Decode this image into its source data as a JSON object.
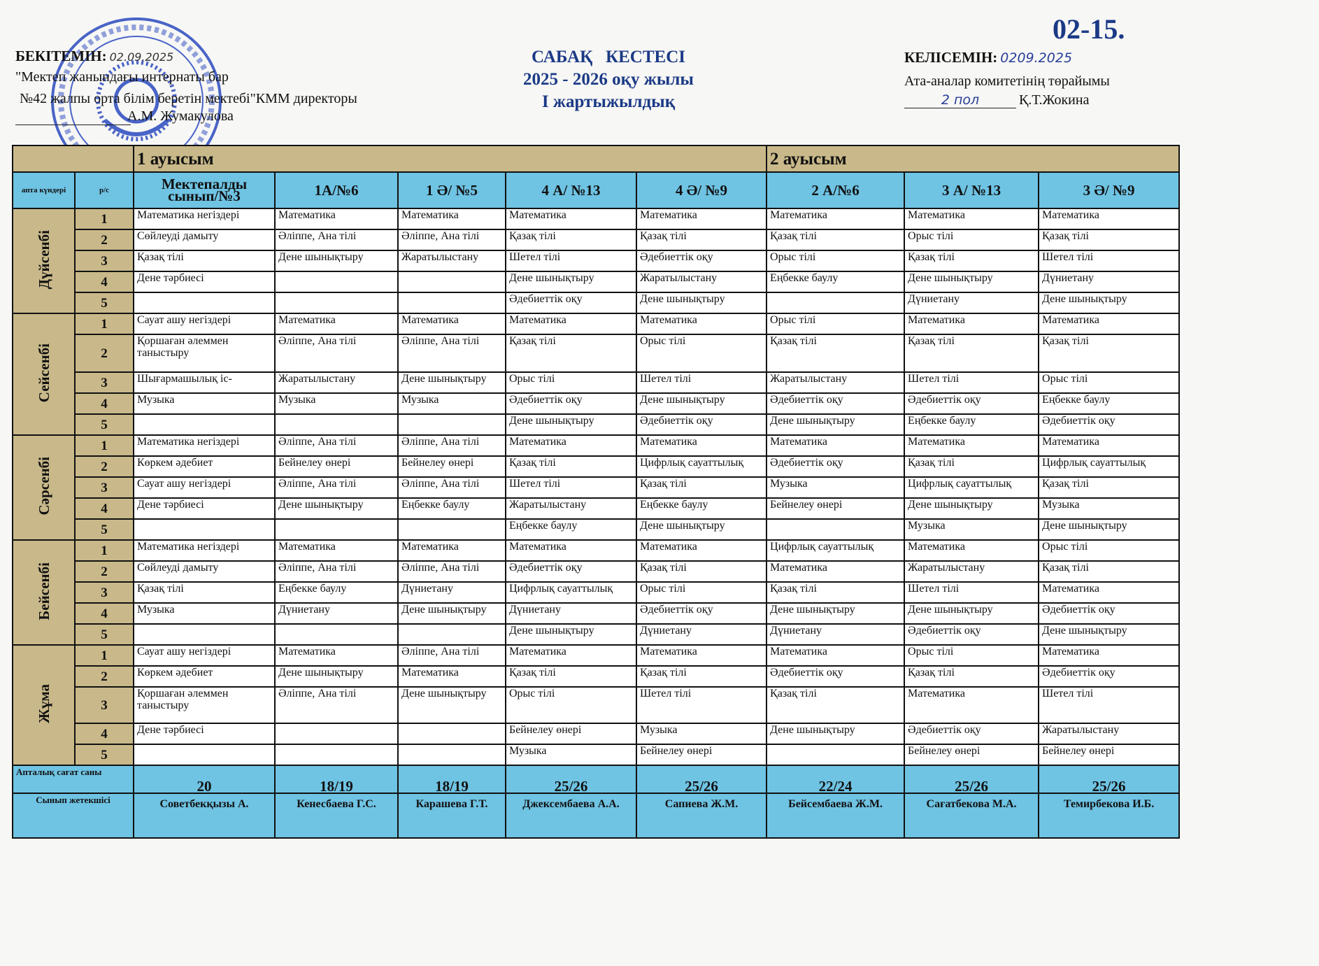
{
  "doc_number": "02-15.",
  "approve": {
    "label": "БЕКІТЕМІН:",
    "date": "02.09.2025",
    "line1": "\"Мектеп жанындағы интернаты бар",
    "line2": "№42 жалпы орта білім беретін мектебі\"КММ директоры",
    "director": "А.М. Жумакулова",
    "stamp_text": "№42 ЖАЛПЫ ОРТА БІЛІМ БЕРЕТІН МЕКТЕБІ"
  },
  "title": {
    "main": "САБАҚ   КЕСТЕСІ",
    "year": "2025 - 2026 оқу жылы",
    "term": "І жартыжылдық"
  },
  "agree": {
    "label": "КЕЛІСЕМІН:",
    "date": "0209.2025",
    "line1": "Ата-аналар комитетінің төрайымы",
    "signature": "2 пол",
    "person": "Қ.Т.Жокина"
  },
  "table": {
    "shift1": "1 ауысым",
    "shift2": "2 ауысым",
    "day_header": "апта күндері",
    "num_header": "р/с",
    "classes": [
      "Мектепалды сынып/№3",
      "1А/№6",
      "1 Ә/ №5",
      "4 А/ №13",
      "4  Ә/ №9",
      "2 А/№6",
      "3 А/ №13",
      "3 Ә/ №9"
    ],
    "days": [
      {
        "name": "Дүйсенбі",
        "lessons": [
          [
            "Математика негіздері",
            "Математика",
            "Математика",
            "Математика",
            "Математика",
            "Математика",
            "Математика",
            "Математика"
          ],
          [
            "Сөйлеуді дамыту",
            "Әліппе, Ана тілі",
            "Әліппе, Ана тілі",
            "Қазақ тілі",
            "Қазақ тілі",
            "Қазақ тілі",
            "Орыс тілі",
            "Қазақ тілі"
          ],
          [
            "Қазақ тілі",
            "Дене шынықтыру",
            "Жаратылыстану",
            "Шетел тілі",
            "Әдебиеттік оқу",
            "Орыс тілі",
            "Қазақ тілі",
            "Шетел тілі"
          ],
          [
            "Дене тәрбиесі",
            "",
            "",
            "Дене шынықтыру",
            "Жаратылыстану",
            "Еңбекке баулу",
            "Дене шынықтыру",
            "Дүниетану"
          ],
          [
            "",
            "",
            "",
            "Әдебиеттік оқу",
            "Дене шынықтыру",
            "",
            "Дүниетану",
            "Дене шынықтыру"
          ]
        ]
      },
      {
        "name": "Сейсенбі",
        "lessons": [
          [
            " Сауат ашу негіздері",
            "Математика",
            "Математика",
            "Математика",
            "Математика",
            "Орыс тілі",
            "Математика",
            "Математика"
          ],
          [
            "Қоршаған әлеммен таныстыру",
            "Әліппе, Ана тілі",
            "Әліппе, Ана тілі",
            "Қазақ тілі",
            "Орыс тілі",
            "Қазақ тілі",
            "Қазақ тілі",
            "Қазақ тілі"
          ],
          [
            "Шығармашылық іс-",
            "Жаратылыстану",
            "Дене шынықтыру",
            "Орыс тілі",
            "Шетел тілі",
            "Жаратылыстану",
            "Шетел тілі",
            "Орыс тілі"
          ],
          [
            "Музыка",
            "Музыка",
            "Музыка",
            "Әдебиеттік оқу",
            "Дене шынықтыру",
            "Әдебиеттік оқу",
            "Әдебиеттік оқу",
            "Еңбекке баулу"
          ],
          [
            "",
            "",
            "",
            "Дене шынықтыру",
            "Әдебиеттік оқу",
            "Дене шынықтыру",
            "Еңбекке баулу",
            "Әдебиеттік оқу"
          ]
        ]
      },
      {
        "name": "Сәрсенбі",
        "lessons": [
          [
            "Математика негіздері",
            "Әліппе, Ана тілі",
            "Әліппе, Ана тілі",
            "Математика",
            "Математика",
            "Математика",
            "Математика",
            "Математика"
          ],
          [
            "Көркем әдебиет",
            "Бейнелеу өнері",
            "Бейнелеу өнері",
            "Қазақ тілі",
            "Цифрлық сауаттылық",
            "Әдебиеттік оқу",
            "Қазақ тілі",
            "Цифрлық сауаттылық"
          ],
          [
            "Сауат ашу негіздері",
            "Әліппе, Ана тілі",
            "Әліппе, Ана тілі",
            "Шетел тілі",
            "Қазақ тілі",
            "Музыка",
            "Цифрлық сауаттылық",
            "Қазақ тілі"
          ],
          [
            "Дене тәрбиесі",
            "Дене шынықтыру",
            "Еңбекке баулу",
            "Жаратылыстану",
            "Еңбекке баулу",
            "Бейнелеу өнері",
            "Дене шынықтыру",
            "Музыка"
          ],
          [
            "",
            "",
            "",
            "Еңбекке баулу",
            "Дене шынықтыру",
            "",
            "Музыка",
            "Дене шынықтыру"
          ]
        ]
      },
      {
        "name": "Бейсенбі",
        "lessons": [
          [
            "Математика негіздері",
            "Математика",
            "Математика",
            "Математика",
            "Математика",
            "Цифрлық сауаттылық",
            "Математика",
            "Орыс тілі"
          ],
          [
            "Сөйлеуді дамыту",
            "Әліппе, Ана тілі",
            "Әліппе, Ана тілі",
            "Әдебиеттік оқу",
            "Қазақ тілі",
            "Математика",
            "Жаратылыстану",
            "Қазақ тілі"
          ],
          [
            "Қазақ тілі",
            "Еңбекке баулу",
            "Дүниетану",
            "Цифрлық сауаттылық",
            "Орыс тілі",
            "Қазақ тілі",
            "Шетел тілі",
            "Математика"
          ],
          [
            "Музыка",
            "Дүниетану",
            "Дене шынықтыру",
            "Дүниетану",
            "Әдебиеттік оқу",
            "Дене шынықтыру",
            "Дене шынықтыру",
            "Әдебиеттік оқу"
          ],
          [
            "",
            "",
            "",
            "Дене шынықтыру",
            "Дүниетану",
            "Дүниетану",
            "Әдебиеттік оқу",
            "Дене шынықтыру"
          ]
        ]
      },
      {
        "name": "Жұма",
        "lessons": [
          [
            "Сауат ашу негіздері",
            "Математика",
            "Әліппе, Ана тілі",
            "Математика",
            "Математика",
            "Математика",
            "Орыс тілі",
            "Математика"
          ],
          [
            "Көркем әдебиет",
            "Дене шынықтыру",
            "Математика",
            "Қазақ тілі",
            "Қазақ тілі",
            "Әдебиеттік оқу",
            "Қазақ тілі",
            "Әдебиеттік оқу"
          ],
          [
            "Қоршаған әлеммен таныстыру",
            "Әліппе, Ана тілі",
            "Дене шынықтыру",
            "Орыс тілі",
            "Шетел тілі",
            "Қазақ тілі",
            "Математика",
            "Шетел тілі"
          ],
          [
            "Дене тәрбиесі",
            "",
            "",
            "Бейнелеу өнері",
            "Музыка",
            "Дене шынықтыру",
            "Әдебиеттік оқу",
            "Жаратылыстану"
          ],
          [
            "",
            "",
            "",
            "Музыка",
            "Бейнелеу өнері",
            "",
            "Бейнелеу өнері",
            "Бейнелеу өнері"
          ]
        ]
      }
    ],
    "hours_label": "Апталық сағат саны",
    "hours": [
      "20",
      "18/19",
      "18/19",
      "25/26",
      "25/26",
      "22/24",
      "25/26",
      "25/26"
    ],
    "teacher_label": "Сынып жетекшісі",
    "teachers": [
      "Советбекқызы А.",
      "Кенесбаева Г.С.",
      "Карашева Г.Т.",
      "Джексембаева А.А.",
      "Сапиева Ж.М.",
      "Бейсембаева Ж.М.",
      "Сағатбекова М.А.",
      "Темирбекова И.Б."
    ]
  },
  "colors": {
    "shift_bg": "#c9b98a",
    "header_bg": "#6fc3e3",
    "title_blue": "#1b3a86",
    "stamp_blue": "#2b4bc0"
  }
}
